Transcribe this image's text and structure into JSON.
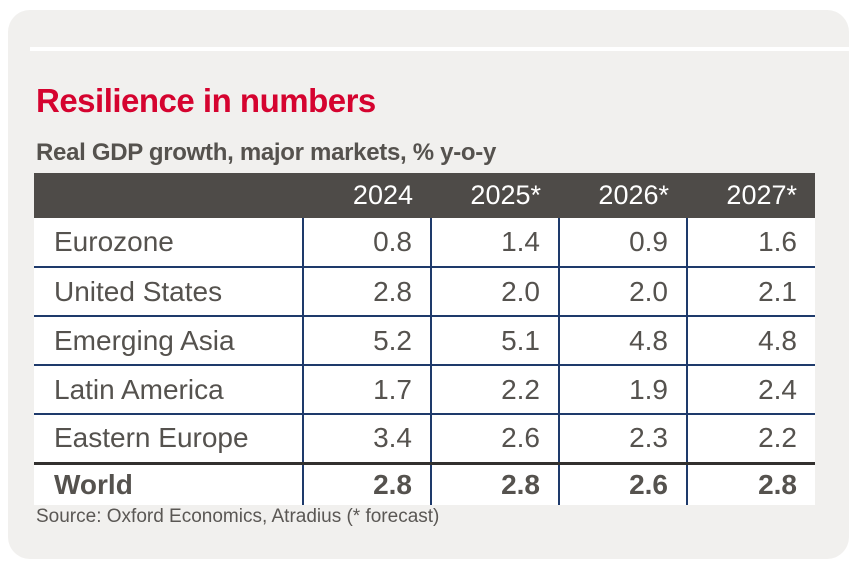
{
  "page": {
    "title": "Resilience in numbers",
    "subtitle": "Real GDP growth, major markets, % y-o-y",
    "source": "Source: Oxford Economics, Atradius (* forecast)"
  },
  "colors": {
    "card_bg": "#f1f0ee",
    "header_bg": "#4e4b48",
    "text_gray": "#55524e",
    "accent_red": "#d5032f",
    "divider_blue": "#1e3a6b",
    "world_rule": "#32302e"
  },
  "chart_data": {
    "type": "table",
    "title": "Resilience in numbers",
    "subtitle": "Real GDP growth, major markets, % y-o-y",
    "unit": "% y-o-y",
    "columns": [
      "",
      "2024",
      "2025*",
      "2026*",
      "2027*"
    ],
    "rows": [
      {
        "label": "Eurozone",
        "values": [
          "0.8",
          "1.4",
          "0.9",
          "1.6"
        ],
        "bold": false
      },
      {
        "label": "United States",
        "values": [
          "2.8",
          "2.0",
          "2.0",
          "2.1"
        ],
        "bold": false
      },
      {
        "label": "Emerging Asia",
        "values": [
          "5.2",
          "5.1",
          "4.8",
          "4.8"
        ],
        "bold": false
      },
      {
        "label": "Latin America",
        "values": [
          "1.7",
          "2.2",
          "1.9",
          "2.4"
        ],
        "bold": false
      },
      {
        "label": "Eastern Europe",
        "values": [
          "3.4",
          "2.6",
          "2.3",
          "2.2"
        ],
        "bold": false
      },
      {
        "label": "World",
        "values": [
          "2.8",
          "2.8",
          "2.6",
          "2.8"
        ],
        "bold": true
      }
    ],
    "source": "Source: Oxford Economics, Atradius (* forecast)",
    "footnote_marker": "* forecast"
  }
}
